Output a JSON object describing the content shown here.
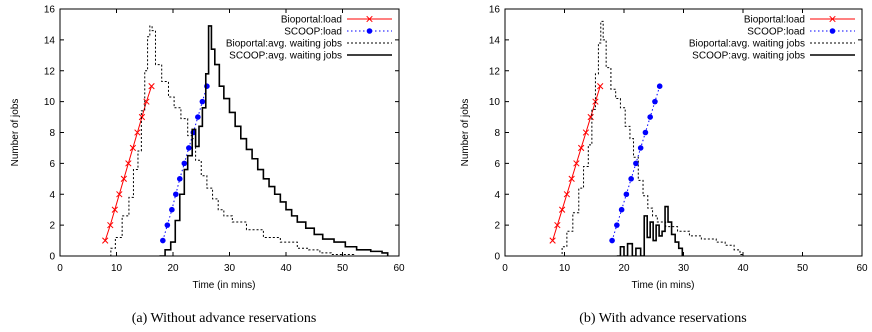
{
  "chart_data": [
    {
      "type": "line",
      "caption": "(a)  Without advance reservations",
      "xlabel": "Time (in mins)",
      "ylabel": "Number of jobs",
      "xlim": [
        0,
        60
      ],
      "ylim": [
        0,
        16
      ],
      "xticks": [
        "0",
        "10",
        "20",
        "30",
        "40",
        "50",
        "60"
      ],
      "yticks": [
        "0",
        "2",
        "4",
        "6",
        "8",
        "10",
        "12",
        "14",
        "16"
      ],
      "legend_position": "top-right",
      "series": [
        {
          "name": "Bioportal:load",
          "style": "line-x-markers",
          "color": "#ff0000",
          "points": [
            [
              8.0,
              1
            ],
            [
              8.9,
              2
            ],
            [
              9.7,
              3
            ],
            [
              10.5,
              4
            ],
            [
              11.3,
              5
            ],
            [
              12.1,
              6
            ],
            [
              12.9,
              7
            ],
            [
              13.7,
              8
            ],
            [
              14.5,
              9
            ],
            [
              15.3,
              10
            ],
            [
              16.2,
              11
            ]
          ]
        },
        {
          "name": "SCOOP:load",
          "style": "dotted-dot-markers",
          "color": "#0000ff",
          "points": [
            [
              18.2,
              1
            ],
            [
              19.0,
              2
            ],
            [
              19.8,
              3
            ],
            [
              20.5,
              4
            ],
            [
              21.2,
              5
            ],
            [
              22.0,
              6
            ],
            [
              22.8,
              7
            ],
            [
              23.6,
              8
            ],
            [
              24.4,
              9
            ],
            [
              25.2,
              10
            ],
            [
              26.0,
              11
            ]
          ]
        },
        {
          "name": "Bioportal:avg. waiting jobs",
          "style": "dotted",
          "color": "#000000",
          "points": [
            [
              8.2,
              0
            ],
            [
              9.0,
              0.5
            ],
            [
              9.8,
              1.2
            ],
            [
              11.0,
              2.6
            ],
            [
              12.2,
              3.8
            ],
            [
              13.0,
              5.6
            ],
            [
              13.8,
              6.8
            ],
            [
              14.4,
              9.4
            ],
            [
              15.0,
              12.0
            ],
            [
              15.5,
              14.2
            ],
            [
              15.9,
              14.9
            ],
            [
              16.3,
              14.6
            ],
            [
              16.9,
              12.4
            ],
            [
              18.0,
              11.3
            ],
            [
              19.2,
              10.3
            ],
            [
              20.2,
              9.6
            ],
            [
              21.4,
              8.9
            ],
            [
              22.6,
              7.8
            ],
            [
              23.4,
              7.6
            ],
            [
              24.0,
              6.2
            ],
            [
              25.0,
              5.2
            ],
            [
              26.0,
              4.4
            ],
            [
              27.0,
              3.7
            ],
            [
              28.0,
              3.0
            ],
            [
              29.0,
              2.6
            ],
            [
              30.5,
              2.2
            ],
            [
              33.0,
              1.7
            ],
            [
              36.0,
              1.2
            ],
            [
              39.0,
              0.9
            ],
            [
              42.0,
              0.5
            ],
            [
              44.0,
              0.4
            ],
            [
              46.0,
              0.2
            ],
            [
              48.0,
              0.1
            ],
            [
              50.0,
              0.1
            ],
            [
              52.0,
              0.0
            ]
          ]
        },
        {
          "name": "SCOOP:avg. waiting jobs",
          "style": "solid",
          "color": "#000000",
          "points": [
            [
              17.6,
              0
            ],
            [
              18.6,
              0.4
            ],
            [
              19.6,
              0.9
            ],
            [
              20.4,
              2.3
            ],
            [
              21.2,
              4.0
            ],
            [
              22.0,
              5.6
            ],
            [
              22.6,
              6.5
            ],
            [
              23.4,
              8.2
            ],
            [
              24.0,
              7.1
            ],
            [
              24.6,
              8.4
            ],
            [
              25.2,
              9.6
            ],
            [
              25.8,
              11.8
            ],
            [
              26.3,
              14.9
            ],
            [
              26.8,
              13.4
            ],
            [
              27.4,
              12.4
            ],
            [
              28.2,
              11.0
            ],
            [
              29.0,
              10.2
            ],
            [
              30.0,
              9.3
            ],
            [
              31.0,
              8.4
            ],
            [
              32.0,
              7.6
            ],
            [
              33.0,
              6.9
            ],
            [
              34.0,
              6.3
            ],
            [
              35.0,
              5.6
            ],
            [
              36.0,
              5.0
            ],
            [
              37.0,
              4.5
            ],
            [
              38.0,
              4.0
            ],
            [
              39.0,
              3.5
            ],
            [
              40.0,
              3.0
            ],
            [
              41.0,
              2.6
            ],
            [
              42.0,
              2.2
            ],
            [
              43.5,
              1.8
            ],
            [
              45.0,
              1.4
            ],
            [
              46.5,
              1.1
            ],
            [
              48.5,
              0.9
            ],
            [
              50.5,
              0.6
            ],
            [
              52.5,
              0.4
            ],
            [
              55.0,
              0.3
            ],
            [
              57.0,
              0.2
            ],
            [
              58.0,
              0.0
            ]
          ]
        }
      ]
    },
    {
      "type": "line",
      "caption": "(b)  With advance reservations",
      "xlabel": "Time (in mins)",
      "ylabel": "Number of jobs",
      "xlim": [
        0,
        60
      ],
      "ylim": [
        0,
        16
      ],
      "xticks": [
        "0",
        "10",
        "20",
        "30",
        "40",
        "50",
        "60"
      ],
      "yticks": [
        "0",
        "2",
        "4",
        "6",
        "8",
        "10",
        "12",
        "14",
        "16"
      ],
      "legend_position": "top-right",
      "series": [
        {
          "name": "Bioportal:load",
          "style": "line-x-markers",
          "color": "#ff0000",
          "points": [
            [
              8.0,
              1
            ],
            [
              8.8,
              2
            ],
            [
              9.6,
              3
            ],
            [
              10.4,
              4
            ],
            [
              11.2,
              5
            ],
            [
              12.0,
              6
            ],
            [
              12.8,
              7
            ],
            [
              13.6,
              8
            ],
            [
              14.4,
              9
            ],
            [
              15.2,
              10
            ],
            [
              16.0,
              11
            ]
          ]
        },
        {
          "name": "SCOOP:load",
          "style": "dotted-dot-markers",
          "color": "#0000ff",
          "points": [
            [
              18.0,
              1
            ],
            [
              18.8,
              2
            ],
            [
              19.6,
              3
            ],
            [
              20.4,
              4
            ],
            [
              21.2,
              5
            ],
            [
              22.0,
              6
            ],
            [
              22.8,
              7
            ],
            [
              23.6,
              8
            ],
            [
              24.4,
              9
            ],
            [
              25.2,
              10
            ],
            [
              26.0,
              11
            ]
          ]
        },
        {
          "name": "Bioportal:avg. waiting jobs",
          "style": "dotted",
          "color": "#000000",
          "points": [
            [
              8.6,
              0
            ],
            [
              9.6,
              0.6
            ],
            [
              10.4,
              1.6
            ],
            [
              11.4,
              2.8
            ],
            [
              12.4,
              4.4
            ],
            [
              13.2,
              5.8
            ],
            [
              14.0,
              7.2
            ],
            [
              14.6,
              9.5
            ],
            [
              15.2,
              11.8
            ],
            [
              15.7,
              13.8
            ],
            [
              16.1,
              15.2
            ],
            [
              16.5,
              14.0
            ],
            [
              17.0,
              12.2
            ],
            [
              17.8,
              10.8
            ],
            [
              18.6,
              10.2
            ],
            [
              19.4,
              9.6
            ],
            [
              20.2,
              8.4
            ],
            [
              21.0,
              7.6
            ],
            [
              21.6,
              6.4
            ],
            [
              22.4,
              4.9
            ],
            [
              23.2,
              3.9
            ],
            [
              24.0,
              3.1
            ],
            [
              24.8,
              2.6
            ],
            [
              25.6,
              2.2
            ],
            [
              27.0,
              1.9
            ],
            [
              29.0,
              1.6
            ],
            [
              31.0,
              1.3
            ],
            [
              33.0,
              1.1
            ],
            [
              35.5,
              0.9
            ],
            [
              37.0,
              0.7
            ],
            [
              38.5,
              0.4
            ],
            [
              39.5,
              0.1
            ],
            [
              40.0,
              0.0
            ]
          ]
        },
        {
          "name": "SCOOP:avg. waiting jobs",
          "style": "solid",
          "color": "#000000",
          "points": [
            [
              18.8,
              0
            ],
            [
              19.4,
              0.6
            ],
            [
              20.0,
              0.0
            ],
            [
              20.6,
              0.8
            ],
            [
              21.4,
              0.0
            ],
            [
              22.0,
              0.5
            ],
            [
              22.8,
              0.0
            ],
            [
              23.4,
              2.6
            ],
            [
              23.9,
              1.2
            ],
            [
              24.4,
              2.2
            ],
            [
              24.9,
              1.0
            ],
            [
              25.4,
              2.0
            ],
            [
              25.9,
              1.3
            ],
            [
              26.4,
              1.6
            ],
            [
              26.9,
              3.2
            ],
            [
              27.4,
              2.2
            ],
            [
              28.0,
              1.4
            ],
            [
              28.6,
              0.9
            ],
            [
              29.2,
              0.5
            ],
            [
              29.8,
              0.0
            ]
          ]
        }
      ]
    }
  ]
}
